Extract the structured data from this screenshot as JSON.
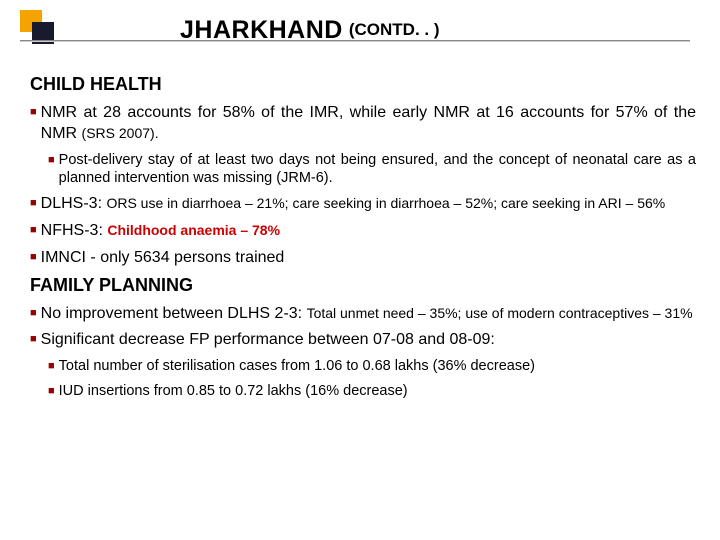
{
  "colors": {
    "bullet": "#900",
    "orange": "#f4a300",
    "dark": "#1a1a2e",
    "red": "#cc0000",
    "text": "#000000",
    "background": "#ffffff"
  },
  "typography": {
    "title_main_fontsize": 25,
    "title_sub_fontsize": 17,
    "section_heading_fontsize": 18,
    "bullet_fontsize": 16,
    "bullet_sub_fontsize": 14.5,
    "font_family": "Arial"
  },
  "title": {
    "main": "JHARKHAND",
    "suffix": "(CONTD. . )"
  },
  "sections": [
    {
      "heading": "CHILD HEALTH",
      "items": [
        {
          "type": "main",
          "parts": [
            {
              "text": "NMR at 28 accounts for 58% of the IMR, while early NMR  at 16 accounts for 57% of the NMR "
            },
            {
              "text": "(SRS 2007).",
              "class": "small-inline"
            }
          ]
        },
        {
          "type": "sub",
          "parts": [
            {
              "text": "Post-delivery stay of at least two days not being ensured, and the concept of neonatal care as a planned intervention was missing "
            },
            {
              "text": "(JRM-6).",
              "class": ""
            }
          ]
        },
        {
          "type": "main",
          "parts": [
            {
              "text": "DLHS-3: "
            },
            {
              "text": "ORS use in diarrhoea – 21%; care seeking in diarrhoea – 52%; care seeking in ARI – 56%",
              "class": "small-inline"
            }
          ]
        },
        {
          "type": "main",
          "parts": [
            {
              "text": "NFHS-3: "
            },
            {
              "text": "Childhood anaemia – 78%",
              "class": "red-bold small-inline"
            }
          ]
        },
        {
          "type": "main",
          "parts": [
            {
              "text": "IMNCI  - only 5634 persons trained"
            }
          ]
        }
      ]
    },
    {
      "heading": "FAMILY PLANNING",
      "items": [
        {
          "type": "main",
          "parts": [
            {
              "text": "No improvement between DLHS 2-3: "
            },
            {
              "text": "Total unmet need – 35%; use of modern contraceptives – 31%",
              "class": "small-inline"
            }
          ]
        },
        {
          "type": "main",
          "parts": [
            {
              "text": "Significant decrease FP performance between 07-08 and 08-09:"
            }
          ]
        },
        {
          "type": "sub",
          "parts": [
            {
              "text": "Total number of sterilisation cases from 1.06 to 0.68 lakhs (36% decrease)"
            }
          ]
        },
        {
          "type": "sub",
          "parts": [
            {
              "text": "IUD insertions from 0.85 to 0.72 lakhs (16% decrease)"
            }
          ]
        }
      ]
    }
  ]
}
